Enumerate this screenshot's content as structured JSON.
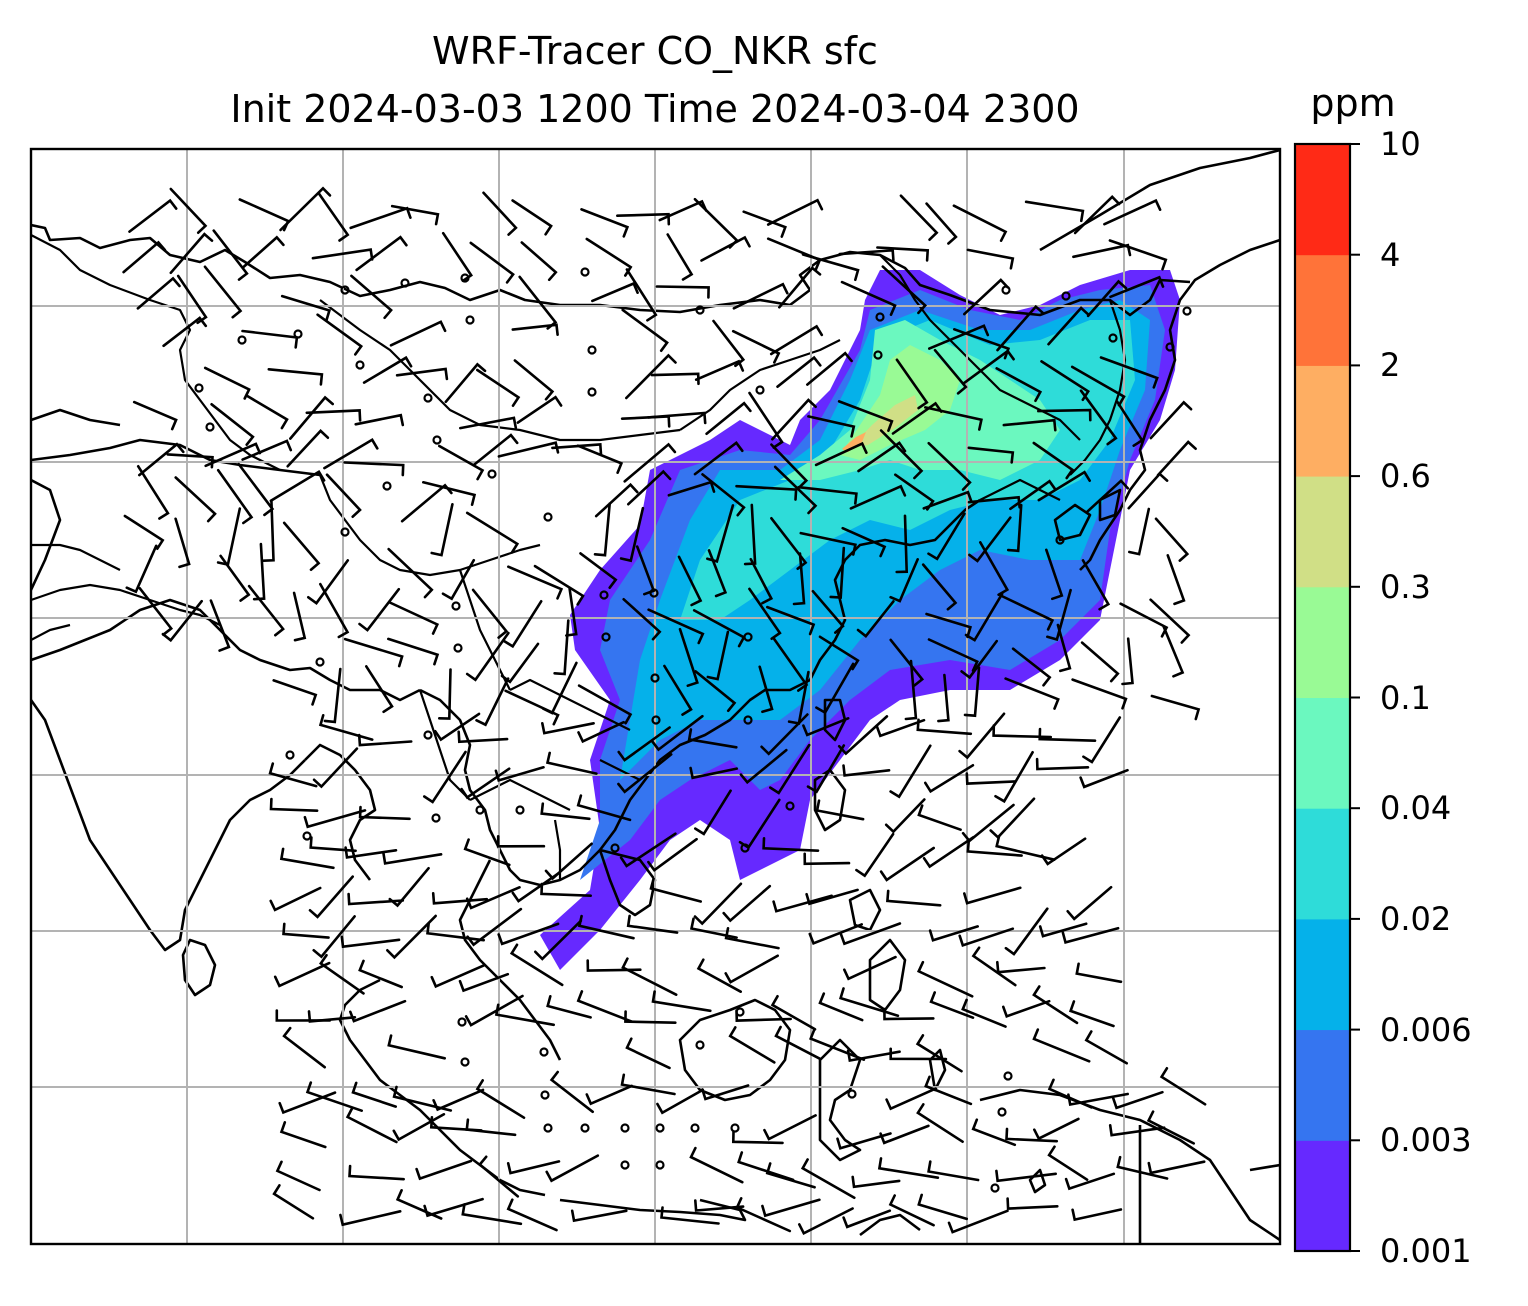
{
  "title": {
    "line1": "WRF-Tracer CO_NKR sfc",
    "line2": "Init 2024-03-03 1200 Time 2024-03-04 2300"
  },
  "colorbar": {
    "unit": "ppm",
    "levels": [
      "0.001",
      "0.003",
      "0.006",
      "0.02",
      "0.04",
      "0.1",
      "0.3",
      "0.6",
      "2",
      "4",
      "10"
    ],
    "colors": [
      "#6629ff",
      "#3575f0",
      "#05b1ea",
      "#2edcd9",
      "#6bf8bf",
      "#99fa95",
      "#d0df86",
      "#feae62",
      "#ff7339",
      "#ff2a16"
    ]
  },
  "map": {
    "background": "#ffffff",
    "coastline_color": "#000000",
    "gridline_color": "#b3b3b3",
    "barb_color": "#000000",
    "region": "East Asia, South Asia and Southeast Asia",
    "layers": [
      "coastlines",
      "country borders",
      "lat-lon gridlines",
      "CO tracer concentration fill",
      "wind barbs"
    ]
  }
}
